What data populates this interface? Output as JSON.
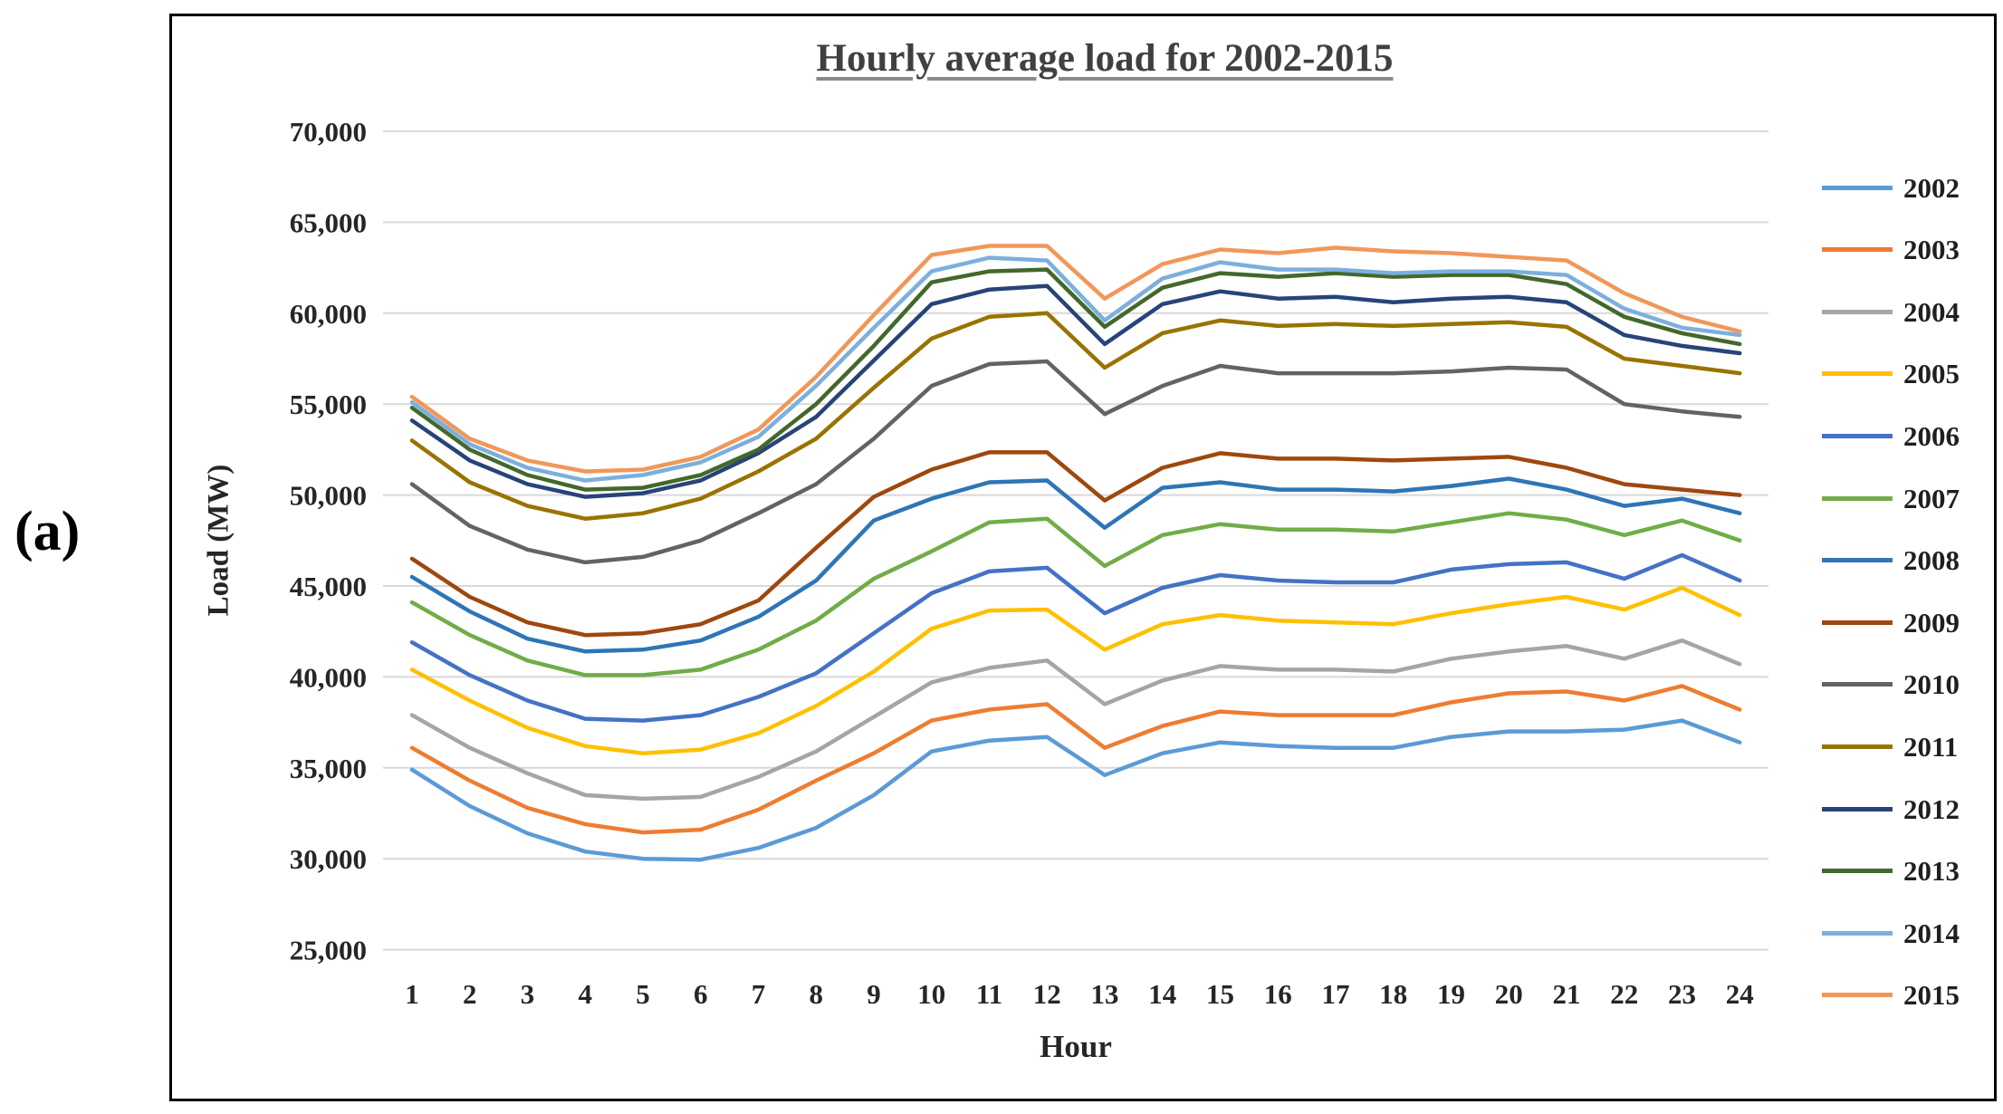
{
  "figure_label": "(a)",
  "chart_data": {
    "type": "line",
    "title": "Hourly average load for 2002-2015",
    "xlabel": "Hour",
    "ylabel": "Load (MW)",
    "x": [
      1,
      2,
      3,
      4,
      5,
      6,
      7,
      8,
      9,
      10,
      11,
      12,
      13,
      14,
      15,
      16,
      17,
      18,
      19,
      20,
      21,
      22,
      23,
      24
    ],
    "ylim": [
      25000,
      70000
    ],
    "ytick_values": [
      70000,
      65000,
      60000,
      55000,
      50000,
      45000,
      40000,
      35000,
      30000,
      25000
    ],
    "ytick_labels": [
      "70,000",
      "65,000",
      "60,000",
      "55,000",
      "50,000",
      "45,000",
      "40,000",
      "35,000",
      "30,000",
      "25,000"
    ],
    "grid": true,
    "gridline_color": "#D9D9D9",
    "legend_position": "right",
    "series": [
      {
        "name": "2002",
        "color": "#5B9BD5",
        "values": [
          34900,
          32900,
          31400,
          30400,
          30000,
          29950,
          30600,
          31700,
          33500,
          35900,
          36500,
          36700,
          34600,
          35800,
          36400,
          36200,
          36100,
          36100,
          36700,
          37000,
          37000,
          37100,
          37600,
          36400
        ]
      },
      {
        "name": "2003",
        "color": "#ED7D31",
        "values": [
          36100,
          34300,
          32800,
          31900,
          31450,
          31600,
          32700,
          34300,
          35800,
          37600,
          38200,
          38500,
          36100,
          37300,
          38100,
          37900,
          37900,
          37900,
          38600,
          39100,
          39200,
          38700,
          39500,
          38200
        ]
      },
      {
        "name": "2004",
        "color": "#A5A5A5",
        "values": [
          37900,
          36100,
          34700,
          33500,
          33300,
          33400,
          34500,
          35900,
          37800,
          39700,
          40500,
          40900,
          38500,
          39800,
          40600,
          40400,
          40400,
          40300,
          41000,
          41400,
          41700,
          41000,
          42000,
          40700
        ]
      },
      {
        "name": "2005",
        "color": "#FFC000",
        "values": [
          40400,
          38700,
          37200,
          36200,
          35800,
          36000,
          36900,
          38400,
          40300,
          42650,
          43650,
          43700,
          41500,
          42900,
          43400,
          43100,
          43000,
          42900,
          43500,
          44000,
          44400,
          43700,
          44900,
          43400
        ]
      },
      {
        "name": "2006",
        "color": "#4472C4",
        "values": [
          41900,
          40100,
          38700,
          37700,
          37600,
          37900,
          38900,
          40200,
          42400,
          44600,
          45800,
          46000,
          43500,
          44900,
          45600,
          45300,
          45200,
          45200,
          45900,
          46200,
          46300,
          45400,
          46700,
          45300
        ]
      },
      {
        "name": "2007",
        "color": "#70AD47",
        "values": [
          44100,
          42300,
          40900,
          40100,
          40100,
          40400,
          41500,
          43100,
          45400,
          46900,
          48500,
          48700,
          46100,
          47800,
          48400,
          48100,
          48100,
          48000,
          48500,
          49000,
          48650,
          47800,
          48600,
          47500
        ]
      },
      {
        "name": "2008",
        "color": "#2E75B6",
        "values": [
          45500,
          43600,
          42100,
          41400,
          41500,
          42000,
          43300,
          45300,
          48600,
          49800,
          50700,
          50800,
          48200,
          50400,
          50700,
          50300,
          50300,
          50200,
          50500,
          50900,
          50300,
          49400,
          49800,
          49000
        ]
      },
      {
        "name": "2009",
        "color": "#9E480E",
        "values": [
          46500,
          44400,
          43000,
          42300,
          42400,
          42900,
          44200,
          47100,
          49900,
          51400,
          52350,
          52350,
          49700,
          51500,
          52300,
          52000,
          52000,
          51900,
          52000,
          52100,
          51500,
          50600,
          50300,
          50000
        ]
      },
      {
        "name": "2010",
        "color": "#636363",
        "values": [
          50600,
          48300,
          47000,
          46300,
          46600,
          47500,
          49000,
          50600,
          53100,
          56000,
          57200,
          57350,
          54450,
          56000,
          57100,
          56700,
          56700,
          56700,
          56800,
          57000,
          56900,
          55000,
          54600,
          54300
        ]
      },
      {
        "name": "2011",
        "color": "#997300",
        "values": [
          53000,
          50700,
          49400,
          48700,
          49000,
          49800,
          51300,
          53100,
          55900,
          58600,
          59800,
          60000,
          57000,
          58900,
          59600,
          59300,
          59400,
          59300,
          59400,
          59500,
          59250,
          57500,
          57100,
          56700
        ]
      },
      {
        "name": "2012",
        "color": "#264478",
        "values": [
          54100,
          51900,
          50600,
          49900,
          50100,
          50800,
          52300,
          54300,
          57400,
          60500,
          61300,
          61500,
          58300,
          60500,
          61200,
          60800,
          60900,
          60600,
          60800,
          60900,
          60600,
          58800,
          58200,
          57800
        ]
      },
      {
        "name": "2013",
        "color": "#43682B",
        "values": [
          54800,
          52500,
          51100,
          50300,
          50400,
          51100,
          52500,
          55000,
          58200,
          61700,
          62300,
          62400,
          59250,
          61400,
          62200,
          62000,
          62200,
          62000,
          62100,
          62100,
          61600,
          59800,
          58900,
          58300
        ]
      },
      {
        "name": "2014",
        "color": "#7CAFDD",
        "values": [
          55100,
          52800,
          51500,
          50800,
          51100,
          51800,
          53200,
          56000,
          59200,
          62300,
          63050,
          62900,
          59600,
          61900,
          62800,
          62400,
          62400,
          62200,
          62300,
          62300,
          62100,
          60250,
          59200,
          58800
        ]
      },
      {
        "name": "2015",
        "color": "#F1975A",
        "values": [
          55400,
          53100,
          51900,
          51300,
          51400,
          52100,
          53600,
          56500,
          59900,
          63200,
          63700,
          63700,
          60800,
          62700,
          63500,
          63300,
          63600,
          63400,
          63300,
          63100,
          62900,
          61100,
          59800,
          59000
        ]
      }
    ]
  }
}
